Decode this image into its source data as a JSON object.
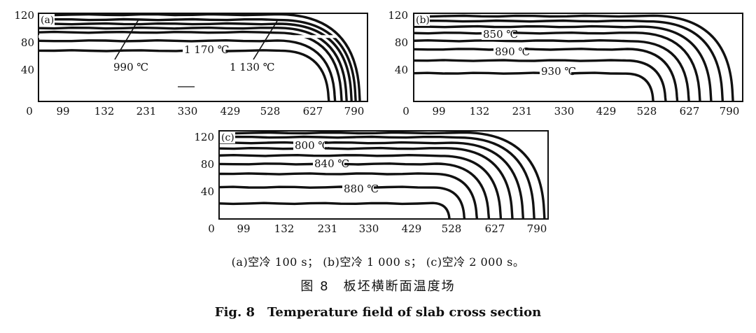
{
  "figure": {
    "subcaption": "(a)空冷 100 s； (b)空冷 1 000 s； (c)空冷 2 000 s。",
    "caption_cn": "图 8　板坯横断面温度场",
    "caption_en": "Fig. 8　Temperature field of slab cross section"
  },
  "chart_data": [
    {
      "id": "a",
      "type": "line",
      "panel_label": "(a)",
      "title": "空冷 100 s",
      "xlabel": "",
      "ylabel": "",
      "x_ticks": [
        "0",
        "99",
        "132",
        "231",
        "330",
        "429",
        "528",
        "627",
        "790"
      ],
      "y_ticks": [
        "40",
        "80",
        "120"
      ],
      "xlim": [
        0,
        800
      ],
      "ylim": [
        0,
        125
      ],
      "annotations": [
        "990 ℃",
        "1 170 ℃",
        "1 130 ℃"
      ],
      "series": [
        {
          "name": "isotherm 1",
          "corner_x": 780,
          "level_y": 123
        },
        {
          "name": "isotherm 2",
          "corner_x": 770,
          "level_y": 116
        },
        {
          "name": "isotherm 3",
          "corner_x": 760,
          "level_y": 110
        },
        {
          "name": "isotherm 4",
          "corner_x": 748,
          "level_y": 104
        },
        {
          "name": "isotherm 5",
          "corner_x": 736,
          "level_y": 98
        },
        {
          "name": "isotherm 6",
          "corner_x": 720,
          "level_y": 86
        },
        {
          "name": "isotherm 7",
          "corner_x": 705,
          "level_y": 72
        }
      ]
    },
    {
      "id": "b",
      "type": "line",
      "panel_label": "(b)",
      "title": "空冷 1 000 s",
      "xlabel": "",
      "ylabel": "",
      "x_ticks": [
        "0",
        "99",
        "132",
        "231",
        "330",
        "429",
        "528",
        "627",
        "790"
      ],
      "y_ticks": [
        "40",
        "80",
        "120"
      ],
      "xlim": [
        0,
        800
      ],
      "ylim": [
        0,
        125
      ],
      "annotations": [
        "850 ℃",
        "890 ℃",
        "930 ℃"
      ],
      "series": [
        {
          "name": "isotherm 1",
          "corner_x": 775,
          "level_y": 121
        },
        {
          "name": "isotherm 2",
          "corner_x": 750,
          "level_y": 114
        },
        {
          "name": "isotherm 3",
          "corner_x": 722,
          "level_y": 106
        },
        {
          "name": "isotherm 4",
          "corner_x": 695,
          "level_y": 97
        },
        {
          "name": "isotherm 5",
          "corner_x": 668,
          "level_y": 86
        },
        {
          "name": "isotherm 6",
          "corner_x": 640,
          "level_y": 74
        },
        {
          "name": "isotherm 7",
          "corner_x": 612,
          "level_y": 58
        },
        {
          "name": "isotherm 8",
          "corner_x": 582,
          "level_y": 40
        }
      ]
    },
    {
      "id": "c",
      "type": "line",
      "panel_label": "(c)",
      "title": "空冷 2 000 s",
      "xlabel": "",
      "ylabel": "",
      "x_ticks": [
        "0",
        "99",
        "132",
        "231",
        "330",
        "429",
        "528",
        "627",
        "790"
      ],
      "y_ticks": [
        "40",
        "80",
        "120"
      ],
      "xlim": [
        0,
        800
      ],
      "ylim": [
        0,
        125
      ],
      "annotations": [
        "800 ℃",
        "840 ℃",
        "880 ℃"
      ],
      "series": [
        {
          "name": "isotherm 1",
          "corner_x": 790,
          "level_y": 122
        },
        {
          "name": "isotherm 2",
          "corner_x": 765,
          "level_y": 116
        },
        {
          "name": "isotherm 3",
          "corner_x": 738,
          "level_y": 108
        },
        {
          "name": "isotherm 4",
          "corner_x": 712,
          "level_y": 100
        },
        {
          "name": "isotherm 5",
          "corner_x": 684,
          "level_y": 90
        },
        {
          "name": "isotherm 6",
          "corner_x": 655,
          "level_y": 78
        },
        {
          "name": "isotherm 7",
          "corner_x": 626,
          "level_y": 64
        },
        {
          "name": "isotherm 8",
          "corner_x": 596,
          "level_y": 45
        },
        {
          "name": "isotherm 9",
          "corner_x": 560,
          "level_y": 22
        }
      ]
    }
  ]
}
